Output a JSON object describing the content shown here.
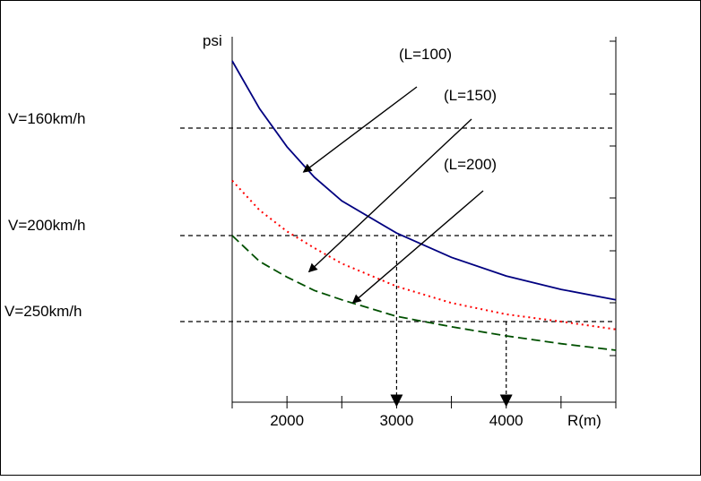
{
  "chart_data": {
    "type": "line",
    "ylabel": "psi",
    "xlabel": "R(m)",
    "xlim": [
      1500,
      5000
    ],
    "x_ticks": [
      2000,
      3000,
      4000
    ],
    "series": [
      {
        "name": "(L=100)",
        "color": "#000080",
        "style": "solid",
        "points": [
          [
            1500,
            3.62
          ],
          [
            1750,
            3.05
          ],
          [
            2000,
            2.6
          ],
          [
            2250,
            2.24
          ],
          [
            2500,
            1.96
          ],
          [
            3000,
            1.58
          ],
          [
            3500,
            1.34
          ],
          [
            4000,
            1.16
          ],
          [
            4500,
            1.03
          ],
          [
            5000,
            0.93
          ]
        ]
      },
      {
        "name": "(L=150)",
        "color": "#ff0000",
        "style": "dotted",
        "points": [
          [
            1500,
            2.2
          ],
          [
            1750,
            1.85
          ],
          [
            2000,
            1.6
          ],
          [
            2250,
            1.43
          ],
          [
            2500,
            1.28
          ],
          [
            3000,
            1.06
          ],
          [
            3500,
            0.9
          ],
          [
            4000,
            0.79
          ],
          [
            4500,
            0.72
          ],
          [
            5000,
            0.66
          ]
        ]
      },
      {
        "name": "(L=200)",
        "color": "#005000",
        "style": "dashed",
        "points": [
          [
            1500,
            1.55
          ],
          [
            1750,
            1.3
          ],
          [
            2000,
            1.15
          ],
          [
            2250,
            1.02
          ],
          [
            2500,
            0.93
          ],
          [
            3000,
            0.77
          ],
          [
            3500,
            0.68
          ],
          [
            4000,
            0.61
          ],
          [
            4500,
            0.55
          ],
          [
            5000,
            0.5
          ]
        ]
      }
    ],
    "speed_lines": [
      {
        "label": "V=160km/h",
        "value": 2.82
      },
      {
        "label": "V=200km/h",
        "value": 1.55
      },
      {
        "label": "V=250km/h",
        "value": 0.72
      }
    ],
    "drop_lines": [
      {
        "x": 3000,
        "from_y": 1.55
      },
      {
        "x": 4000,
        "from_y": 0.72
      }
    ],
    "arrows": [
      {
        "series": "(L=100)",
        "target": [
          2150,
          2.3
        ]
      },
      {
        "series": "(L=150)",
        "target": [
          2200,
          1.2
        ]
      },
      {
        "series": "(L=200)",
        "target": [
          2600,
          0.9
        ]
      }
    ],
    "grid": false
  }
}
